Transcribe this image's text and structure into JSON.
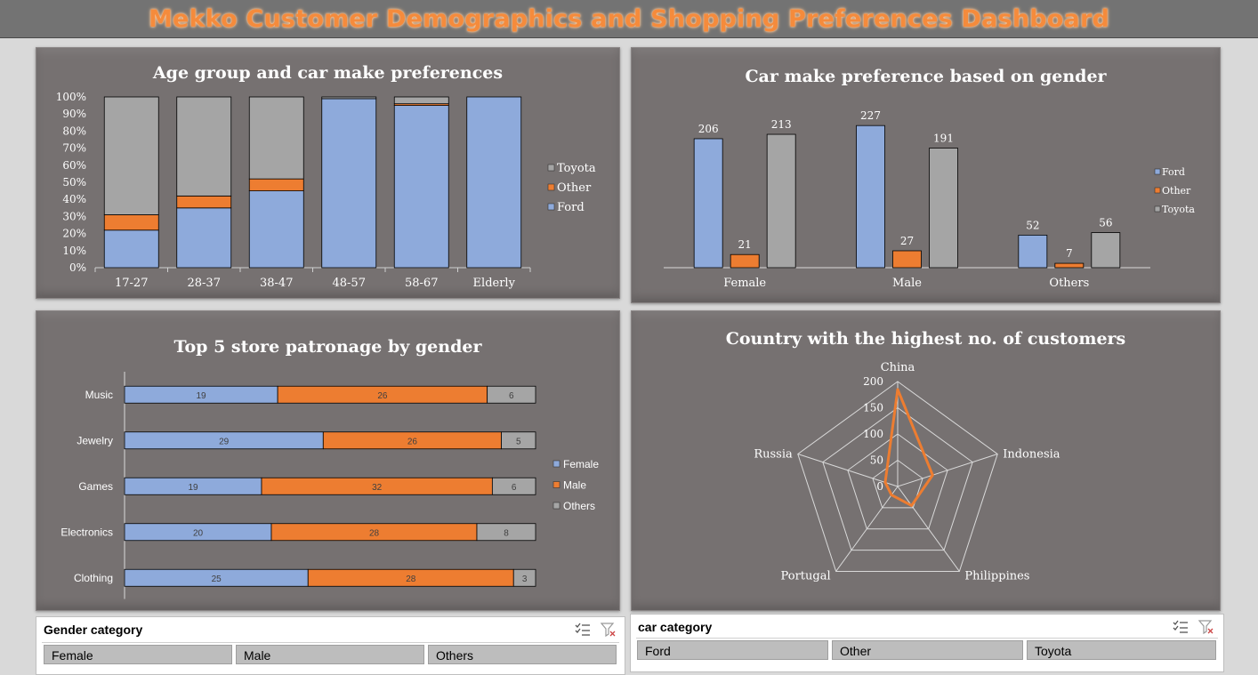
{
  "dashboard": {
    "title": "Mekko Customer Demographics and Shopping Preferences Dashboard"
  },
  "colors": {
    "ford": "#8eaadb",
    "other": "#ed7d31",
    "toyota": "#a5a5a5",
    "panel": "#767171",
    "title": "#f58b3c"
  },
  "chart_data": [
    {
      "type": "bar",
      "stacked": "percent",
      "title": "Age group and car make preferences",
      "categories": [
        "17-27",
        "28-37",
        "38-47",
        "48-57",
        "58-67",
        "Elderly"
      ],
      "series": [
        {
          "name": "Ford",
          "values": [
            22,
            35,
            45,
            99,
            95,
            100
          ]
        },
        {
          "name": "Other",
          "values": [
            9,
            7,
            7,
            0,
            1,
            0
          ]
        },
        {
          "name": "Toyota",
          "values": [
            69,
            58,
            48,
            1,
            4,
            0
          ]
        }
      ],
      "yticks": [
        "0%",
        "10%",
        "20%",
        "30%",
        "40%",
        "50%",
        "60%",
        "70%",
        "80%",
        "90%",
        "100%"
      ],
      "ylim": [
        0,
        100
      ],
      "legend": [
        "Toyota",
        "Other",
        "Ford"
      ],
      "legend_position": "right"
    },
    {
      "type": "bar",
      "title": "Car make preference based on gender",
      "categories": [
        "Female",
        "Male",
        "Others"
      ],
      "series": [
        {
          "name": "Ford",
          "values": [
            206,
            227,
            52
          ]
        },
        {
          "name": "Other",
          "values": [
            21,
            27,
            7
          ]
        },
        {
          "name": "Toyota",
          "values": [
            213,
            191,
            56
          ]
        }
      ],
      "legend": [
        "Ford",
        "Other",
        "Toyota"
      ],
      "legend_position": "right"
    },
    {
      "type": "bar",
      "orientation": "horizontal",
      "stacked": "percent",
      "title": "Top 5 store patronage by gender",
      "categories": [
        "Music",
        "Jewelry",
        "Games",
        "Electronics",
        "Clothing"
      ],
      "series": [
        {
          "name": "Female",
          "values": [
            19,
            29,
            19,
            20,
            25
          ]
        },
        {
          "name": "Male",
          "values": [
            26,
            26,
            32,
            28,
            28
          ]
        },
        {
          "name": "Others",
          "values": [
            6,
            5,
            6,
            8,
            3
          ]
        }
      ],
      "legend": [
        "Female",
        "Male",
        "Others"
      ],
      "legend_position": "right"
    },
    {
      "type": "radar",
      "title": "Country with the highest no. of customers",
      "categories": [
        "China",
        "Indonesia",
        "Philippines",
        "Portugal",
        "Russia"
      ],
      "values": [
        185,
        70,
        45,
        20,
        25
      ],
      "rticks": [
        "0",
        "50",
        "100",
        "150",
        "200"
      ],
      "rlim": [
        0,
        200
      ]
    }
  ],
  "slicers": {
    "gender": {
      "title": "Gender category",
      "items": [
        "Female",
        "Male",
        "Others"
      ]
    },
    "car": {
      "title": "car category",
      "items": [
        "Ford",
        "Other",
        "Toyota"
      ]
    }
  }
}
